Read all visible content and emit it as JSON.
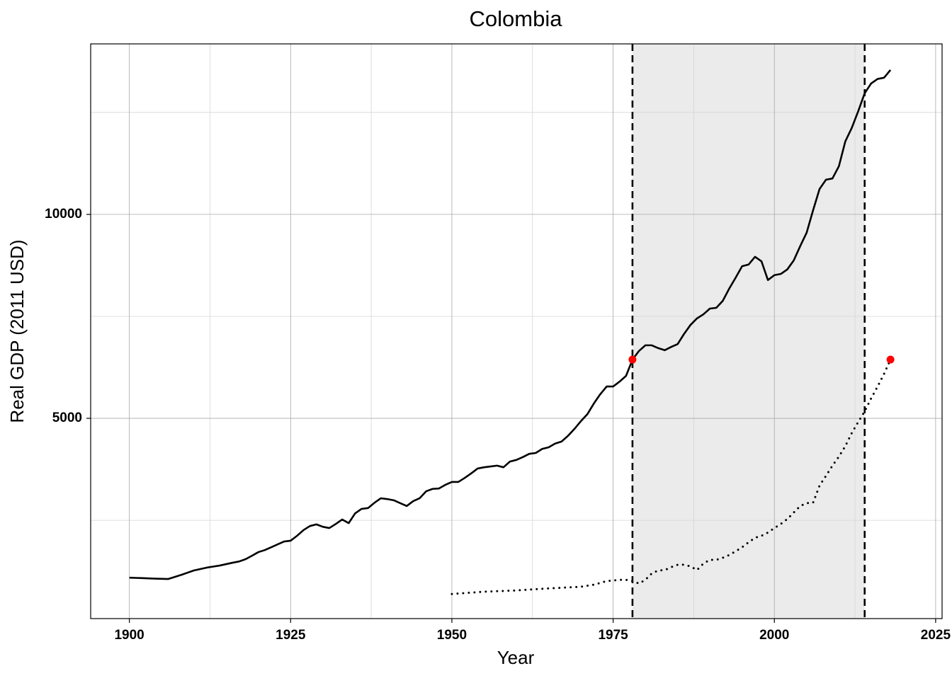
{
  "chart_data": {
    "type": "line",
    "title": "Colombia",
    "x_label": "Year",
    "y_label": "Real GDP (2011 USD)",
    "xlim": [
      1894,
      2026
    ],
    "ylim": [
      90,
      14180
    ],
    "xticks": [
      1900,
      1925,
      1950,
      1975,
      2000,
      2025
    ],
    "yticks": [
      5000,
      10000
    ],
    "minor_xticks": [
      1912.5,
      1937.5,
      1962.5,
      1987.5,
      2012.5
    ],
    "minor_yticks": [
      2500,
      7500,
      12500
    ],
    "grid": true,
    "shaded_region": [
      1978,
      2014
    ],
    "shade_color": "#ebebeb",
    "vlines": [
      1978,
      2014
    ],
    "series": [
      {
        "color": "#000000",
        "dash": "solid",
        "x": [
          1900,
          1901,
          1902,
          1903,
          1904,
          1905,
          1906,
          1907,
          1908,
          1909,
          1910,
          1911,
          1912,
          1913,
          1914,
          1915,
          1916,
          1917,
          1918,
          1919,
          1920,
          1921,
          1922,
          1923,
          1924,
          1925,
          1926,
          1927,
          1928,
          1929,
          1930,
          1931,
          1932,
          1933,
          1934,
          1935,
          1936,
          1937,
          1938,
          1939,
          1940,
          1941,
          1942,
          1943,
          1944,
          1945,
          1946,
          1947,
          1948,
          1949,
          1950,
          1951,
          1952,
          1953,
          1954,
          1955,
          1956,
          1957,
          1958,
          1959,
          1960,
          1961,
          1962,
          1963,
          1964,
          1965,
          1966,
          1967,
          1968,
          1969,
          1970,
          1971,
          1972,
          1973,
          1974,
          1975,
          1976,
          1977,
          1978,
          1979,
          1980,
          1981,
          1982,
          1983,
          1984,
          1985,
          1986,
          1987,
          1988,
          1989,
          1990,
          1991,
          1992,
          1993,
          1994,
          1995,
          1996,
          1997,
          1998,
          1999,
          2000,
          2001,
          2002,
          2003,
          2004,
          2005,
          2006,
          2007,
          2008,
          2009,
          2010,
          2011,
          2012,
          2013,
          2014,
          2015,
          2016,
          2017,
          2018
        ],
        "values": [
          1094,
          1088,
          1082,
          1076,
          1070,
          1065,
          1060,
          1110,
          1160,
          1215,
          1270,
          1305,
          1340,
          1365,
          1390,
          1425,
          1460,
          1490,
          1545,
          1630,
          1720,
          1770,
          1840,
          1910,
          1980,
          2000,
          2120,
          2260,
          2360,
          2400,
          2340,
          2310,
          2410,
          2520,
          2430,
          2670,
          2780,
          2800,
          2930,
          3040,
          3020,
          2990,
          2920,
          2850,
          2970,
          3040,
          3210,
          3270,
          3280,
          3370,
          3440,
          3440,
          3540,
          3650,
          3770,
          3800,
          3820,
          3840,
          3800,
          3940,
          3980,
          4050,
          4130,
          4150,
          4250,
          4290,
          4380,
          4430,
          4570,
          4740,
          4930,
          5100,
          5360,
          5590,
          5780,
          5780,
          5900,
          6040,
          6440,
          6650,
          6790,
          6790,
          6720,
          6670,
          6750,
          6820,
          7070,
          7290,
          7450,
          7550,
          7690,
          7710,
          7880,
          8180,
          8450,
          8730,
          8770,
          8960,
          8850,
          8390,
          8510,
          8540,
          8650,
          8870,
          9220,
          9550,
          10100,
          10620,
          10850,
          10880,
          11180,
          11790,
          12120,
          12530,
          12970,
          13210,
          13320,
          13350,
          13540
        ]
      },
      {
        "color": "#000000",
        "dash": "dotted",
        "x": [
          1950,
          1951,
          1952,
          1953,
          1954,
          1955,
          1956,
          1957,
          1958,
          1959,
          1960,
          1961,
          1962,
          1963,
          1964,
          1965,
          1966,
          1967,
          1968,
          1969,
          1970,
          1971,
          1972,
          1973,
          1974,
          1975,
          1976,
          1977,
          1978,
          1979,
          1980,
          1981,
          1982,
          1983,
          1984,
          1985,
          1986,
          1987,
          1988,
          1989,
          1990,
          1991,
          1992,
          1993,
          1994,
          1995,
          1996,
          1997,
          1998,
          1999,
          2000,
          2001,
          2002,
          2003,
          2004,
          2005,
          2006,
          2007,
          2008,
          2009,
          2010,
          2011,
          2012,
          2013,
          2014,
          2015,
          2016,
          2017,
          2018
        ],
        "values": [
          694,
          705,
          716,
          727,
          738,
          750,
          756,
          762,
          768,
          774,
          780,
          790,
          800,
          810,
          820,
          830,
          838,
          846,
          854,
          862,
          870,
          895,
          920,
          965,
          1010,
          1025,
          1040,
          1040,
          1010,
          950,
          1040,
          1200,
          1270,
          1280,
          1350,
          1410,
          1410,
          1370,
          1280,
          1440,
          1530,
          1530,
          1580,
          1650,
          1740,
          1840,
          1960,
          2070,
          2120,
          2200,
          2310,
          2410,
          2530,
          2690,
          2850,
          2920,
          2930,
          3350,
          3590,
          3840,
          4060,
          4320,
          4640,
          4910,
          5170,
          5490,
          5780,
          6090,
          6440
        ]
      }
    ],
    "points": {
      "color": "#ff0000",
      "x": [
        1978,
        2018
      ],
      "values": [
        6440,
        6440
      ]
    }
  }
}
